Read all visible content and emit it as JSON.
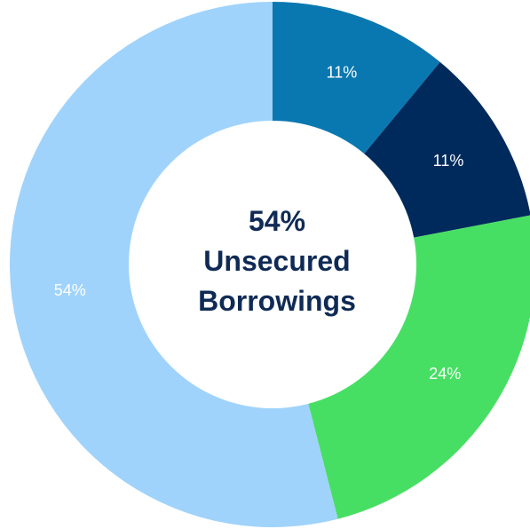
{
  "chart_data": {
    "type": "pie",
    "donut": true,
    "slices": [
      {
        "label": "11%",
        "value": 11,
        "color": "#0a78b0"
      },
      {
        "label": "11%",
        "value": 11,
        "color": "#012a5c"
      },
      {
        "label": "24%",
        "value": 24,
        "color": "#47df63"
      },
      {
        "label": "54%",
        "value": 54,
        "color": "#9fd3fb"
      }
    ],
    "center": {
      "lines": [
        "54%",
        "Unsecured",
        "Borrowings"
      ],
      "color": "#0f2b55"
    },
    "legend": "none"
  }
}
